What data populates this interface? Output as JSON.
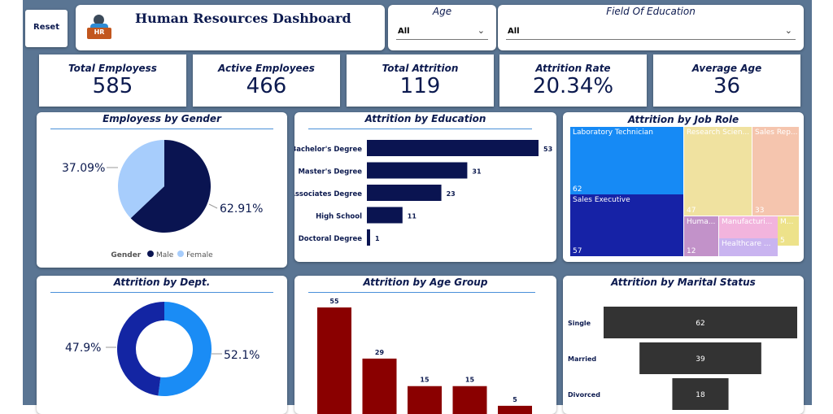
{
  "reset_label": "Reset",
  "header": {
    "title": "Human Resources Dashboard",
    "logo_text": "HR"
  },
  "slicers": {
    "age": {
      "label": "Age",
      "value": "All"
    },
    "education_field": {
      "label": "Field Of Education",
      "value": "All"
    }
  },
  "kpis": [
    {
      "label": "Total Employess",
      "value": "585"
    },
    {
      "label": "Active Employees",
      "value": "466"
    },
    {
      "label": "Total Attrition",
      "value": "119"
    },
    {
      "label": "Attrition Rate",
      "value": "20.34%"
    },
    {
      "label": "Average Age",
      "value": "36"
    }
  ],
  "gender_chart": {
    "title": "Employess by Gender",
    "legend_title": "Gender",
    "slices": [
      {
        "name": "Male",
        "value": 62.91,
        "label": "62.91%",
        "color": "#0a1451"
      },
      {
        "name": "Female",
        "value": 37.09,
        "label": "37.09%",
        "color": "#a7cdfc"
      }
    ]
  },
  "education_chart": {
    "title": "Attrition by Education",
    "color": "#0a1451",
    "categories": [
      "Bachelor's Degree",
      "Master's Degree",
      "Associates Degree",
      "High School",
      "Doctoral Degree"
    ],
    "values": [
      53,
      31,
      23,
      11,
      1
    ]
  },
  "jobrole_chart": {
    "title": "Attrition by Job Role",
    "tiles": [
      {
        "name": "Laboratory Technician",
        "value": "62",
        "color": "#168af5"
      },
      {
        "name": "Sales Executive",
        "value": "57",
        "color": "#1622a6"
      },
      {
        "name": "Research Scien...",
        "value": "47",
        "color": "#f0e2a0"
      },
      {
        "name": "Sales Rep...",
        "value": "33",
        "color": "#f5c5ae"
      },
      {
        "name": "Huma...",
        "value": "12",
        "color": "#c292c9"
      },
      {
        "name": "Manufacturi...",
        "value": "",
        "color": "#f2b4dd"
      },
      {
        "name": "M...",
        "value": "5",
        "color": "#ede28a"
      },
      {
        "name": "Healthcare ...",
        "value": "",
        "color": "#c9b4f0"
      }
    ]
  },
  "dept_chart": {
    "title": "Attrition by Dept.",
    "slices": [
      {
        "value": 52.1,
        "label": "52.1%",
        "color": "#1a8cf5"
      },
      {
        "value": 47.9,
        "label": "47.9%",
        "color": "#1325a3"
      }
    ]
  },
  "agegroup_chart": {
    "title": "Attrition by Age Group",
    "color": "#8a0000",
    "values": [
      55,
      29,
      15,
      15,
      5
    ]
  },
  "marital_chart": {
    "title": "Attrition by Marital Status",
    "color": "#333333",
    "categories": [
      "Single",
      "Married",
      "Divorced"
    ],
    "values": [
      62,
      39,
      18
    ]
  },
  "chart_data": [
    {
      "type": "pie",
      "title": "Employess by Gender",
      "categories": [
        "Male",
        "Female"
      ],
      "values": [
        62.91,
        37.09
      ]
    },
    {
      "type": "bar",
      "title": "Attrition by Education",
      "categories": [
        "Bachelor's Degree",
        "Master's Degree",
        "Associates Degree",
        "High School",
        "Doctoral Degree"
      ],
      "values": [
        53,
        31,
        23,
        11,
        1
      ]
    },
    {
      "type": "pie",
      "title": "Attrition by Dept.",
      "values": [
        52.1,
        47.9
      ]
    },
    {
      "type": "bar",
      "title": "Attrition by Age Group",
      "values": [
        55,
        29,
        15,
        15,
        5
      ]
    },
    {
      "type": "bar",
      "title": "Attrition by Marital Status",
      "categories": [
        "Single",
        "Married",
        "Divorced"
      ],
      "values": [
        62,
        39,
        18
      ]
    }
  ]
}
